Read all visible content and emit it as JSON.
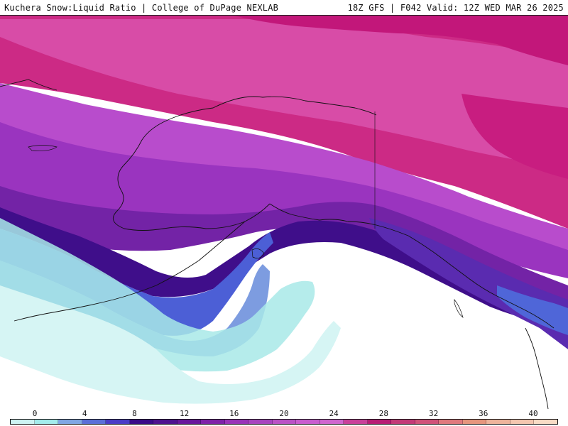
{
  "header": {
    "product": "Kuchera Snow:Liquid Ratio | College of DuPage NEXLAB",
    "run_info": "18Z GFS | F042 Valid: 12Z WED MAR 26 2025"
  },
  "legend": {
    "tick_values": [
      "0",
      "4",
      "8",
      "12",
      "16",
      "20",
      "24",
      "28",
      "32",
      "36",
      "40"
    ],
    "colors": [
      "#cdf3f3",
      "#a3ecec",
      "#7fa7e4",
      "#5b6fd8",
      "#4a3cc7",
      "#3a0a88",
      "#4e128f",
      "#68179c",
      "#7f22a8",
      "#9933b8",
      "#a844bf",
      "#bb52c6",
      "#c95ccf",
      "#d066cf",
      "#c9409a",
      "#b81c75",
      "#c33a78",
      "#d0527a",
      "#e07a7e",
      "#e6967e",
      "#eeb49c",
      "#f4c7b0",
      "#f8dcc6"
    ]
  },
  "map": {
    "region": "Alaska / Gulf of Alaska / Northeast Pacific",
    "palette": {
      "ocean_none": "#ffffff",
      "very_low": "#d7f5f5",
      "low": "#a9ebea",
      "blue_low": "#7fa0e2",
      "blue_mid": "#4f66d8",
      "purple_deep": "#3b0f86",
      "purple_mid": "#6a1ea0",
      "violet": "#9a30b8",
      "orchid": "#c45ccf",
      "magenta": "#d83e9f",
      "magenta_deep": "#c4187a"
    }
  }
}
